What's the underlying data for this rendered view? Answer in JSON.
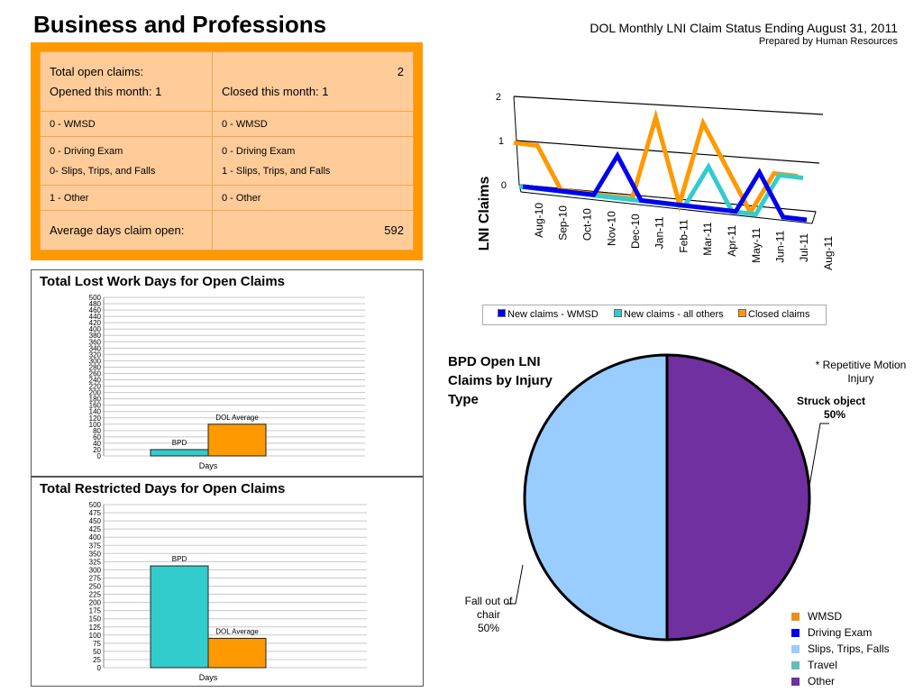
{
  "header": {
    "title": "Business and Professions",
    "report": "DOL Monthly LNI Claim Status Ending August 31, 2011",
    "prepared": "Prepared by Human Resources"
  },
  "summary": {
    "open_label": "Total open claims:",
    "open_value": "2",
    "opened_label": "Opened this month: 1",
    "closed_label": "Closed this month: 1",
    "rows": [
      {
        "left": "0 - WMSD",
        "right": "0 - WMSD"
      },
      {
        "left": "0 -  Driving Exam",
        "right": "0 - Driving Exam"
      },
      {
        "left": "0- Slips, Trips, and Falls",
        "right": "1 - Slips, Trips, and Falls"
      },
      {
        "left": "1 -  Other",
        "right": "0 - Other"
      }
    ],
    "avg_label": "Average days claim open:",
    "avg_value": "592"
  },
  "colors": {
    "orange": "#ff9900",
    "teal": "#33cccc",
    "blue": "#0000ee",
    "purple": "#7030a0",
    "lightblue": "#99ccff"
  },
  "chart_data": [
    {
      "type": "line",
      "ylabel": "LNI Claims",
      "ylim": [
        0,
        2
      ],
      "yticks": [
        "0",
        "1",
        "2"
      ],
      "categories": [
        "Aug-10",
        "Sep-10",
        "Oct-10",
        "Nov-10",
        "Dec-10",
        "Jan-11",
        "Feb-11",
        "Mar-11",
        "Apr-11",
        "May-11",
        "Jun-11",
        "Jul-11",
        "Aug-11"
      ],
      "legend_position": "bottom",
      "series": [
        {
          "name": "New claims - WMSD",
          "color": "#0000ee",
          "values": [
            0,
            0,
            0,
            0,
            1,
            0,
            0,
            0,
            0,
            0,
            1,
            0,
            0
          ]
        },
        {
          "name": "New claims - all others",
          "color": "#33cccc",
          "values": [
            0,
            0,
            0,
            0,
            0,
            0,
            0,
            0,
            1,
            0,
            0,
            1,
            1
          ]
        },
        {
          "name": "Closed claims",
          "color": "#ff9900",
          "values": [
            1,
            1,
            0,
            0,
            0,
            0,
            2,
            0,
            2,
            1,
            0,
            1,
            1
          ]
        }
      ]
    },
    {
      "type": "bar",
      "title": "Total Lost Work Days for Open Claims",
      "xlabel": "Days",
      "ylim": [
        0,
        500
      ],
      "tick_step": 20,
      "categories": [
        "BPD",
        "DOL Average"
      ],
      "values": [
        20,
        100
      ],
      "colors": [
        "#33cccc",
        "#ff9900"
      ]
    },
    {
      "type": "bar",
      "title": "Total Restricted Days for Open Claims",
      "xlabel": "Days",
      "ylim": [
        0,
        500
      ],
      "tick_step": 25,
      "categories": [
        "BPD",
        "DOL Average"
      ],
      "values": [
        312,
        90
      ],
      "colors": [
        "#33cccc",
        "#ff9900"
      ]
    },
    {
      "type": "pie",
      "title": "BPD Open LNI Claims by Injury Type",
      "slices": [
        {
          "label": "Struck object",
          "value": 50,
          "color": "#7030a0"
        },
        {
          "label": "Fall out of chair",
          "value": 50,
          "color": "#99ccff"
        }
      ],
      "annotations": {
        "repetitive": "* Repetitive Motion Injury",
        "struck_name": "Struck object",
        "struck_pct": "50%",
        "fall_name": "Fall  out of chair",
        "fall_pct": "50%"
      },
      "legend": [
        {
          "label": "WMSD",
          "color": "#e8921e"
        },
        {
          "label": "Driving Exam",
          "color": "#0000ee"
        },
        {
          "label": "Slips, Trips, Falls",
          "color": "#99ccff"
        },
        {
          "label": "Travel",
          "color": "#66bbbb"
        },
        {
          "label": "Other",
          "color": "#7030a0"
        }
      ]
    }
  ]
}
